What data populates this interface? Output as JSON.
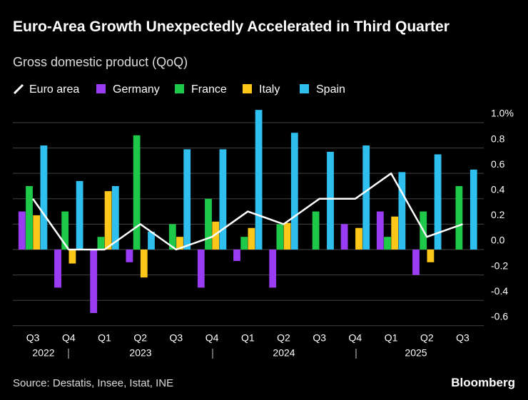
{
  "chart_data": {
    "type": "bar",
    "title": "Euro-Area Growth Unexpectedly Accelerated in Third Quarter",
    "subtitle": "Gross domestic product (QoQ)",
    "source": "Source: Destatis, Insee, Istat, INE",
    "brand": "Bloomberg",
    "categories": [
      "Q3",
      "Q4",
      "Q1",
      "Q2",
      "Q3",
      "Q4",
      "Q1",
      "Q2",
      "Q3",
      "Q4",
      "Q1",
      "Q2",
      "Q3"
    ],
    "years": [
      "2022",
      "2023",
      "2024",
      "2025"
    ],
    "series": [
      {
        "name": "Euro area",
        "type": "line",
        "color": "#ffffff",
        "values": [
          0.4,
          0.0,
          0.0,
          0.2,
          0.0,
          0.1,
          0.3,
          0.2,
          0.4,
          0.4,
          0.6,
          0.1,
          0.2
        ]
      },
      {
        "name": "Germany",
        "color": "#9b3cf5",
        "values": [
          0.3,
          -0.3,
          -0.5,
          -0.1,
          0.0,
          -0.3,
          -0.09,
          -0.3,
          0.0,
          0.2,
          0.3,
          -0.2,
          0.0
        ]
      },
      {
        "name": "France",
        "color": "#1ec94a",
        "values": [
          0.5,
          0.3,
          0.1,
          0.9,
          0.2,
          0.4,
          0.1,
          0.2,
          0.3,
          0.0,
          0.1,
          0.3,
          0.5
        ]
      },
      {
        "name": "Italy",
        "color": "#fcc719",
        "values": [
          0.27,
          -0.11,
          0.46,
          -0.22,
          0.1,
          0.22,
          0.17,
          0.21,
          0.0,
          0.17,
          0.26,
          -0.1,
          0.0
        ]
      },
      {
        "name": "Spain",
        "color": "#2fbfef",
        "values": [
          0.82,
          0.54,
          0.5,
          0.14,
          0.79,
          0.79,
          1.1,
          0.92,
          0.77,
          0.82,
          0.61,
          0.75,
          0.63
        ]
      }
    ],
    "ylim": [
      -0.65,
      1.12
    ],
    "yticks": [
      {
        "value": 1,
        "label": "1.0%"
      },
      0.8,
      0.6,
      0.4,
      0.2,
      {
        "value": 0,
        "label": "0.0"
      },
      -0.2,
      -0.4,
      -0.6
    ],
    "grid": true
  }
}
